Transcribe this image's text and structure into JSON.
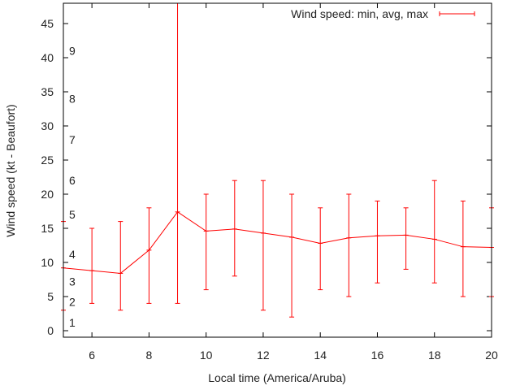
{
  "chart_data": {
    "type": "line",
    "title": "",
    "xlabel": "Local time (America/Aruba)",
    "ylabel": "Wind speed (kt - Beaufort)",
    "xlim": [
      5,
      20
    ],
    "ylim": [
      -1,
      48
    ],
    "xticks": [
      6,
      8,
      10,
      12,
      14,
      16,
      18,
      20
    ],
    "yticks": [
      0,
      5,
      10,
      15,
      20,
      25,
      30,
      35,
      40,
      45
    ],
    "legend": {
      "label": "Wind speed: min, avg, max",
      "placement": "top-right"
    },
    "beaufort_labels": [
      {
        "label": "1",
        "kt": 1.2
      },
      {
        "label": "2",
        "kt": 4.2
      },
      {
        "label": "3",
        "kt": 7.2
      },
      {
        "label": "4",
        "kt": 11.2
      },
      {
        "label": "5",
        "kt": 17
      },
      {
        "label": "6",
        "kt": 22
      },
      {
        "label": "7",
        "kt": 28
      },
      {
        "label": "8",
        "kt": 34
      },
      {
        "label": "9",
        "kt": 41
      }
    ],
    "series": [
      {
        "name": "Wind speed: min, avg, max",
        "color": "#ff0000",
        "x": [
          5,
          6,
          7,
          8,
          9,
          10,
          11,
          12,
          13,
          14,
          15,
          16,
          17,
          18,
          19,
          20
        ],
        "avg": [
          9.2,
          8.8,
          8.4,
          11.8,
          17.4,
          14.6,
          14.9,
          14.3,
          13.7,
          12.8,
          13.6,
          13.9,
          14.0,
          13.4,
          12.3,
          12.2
        ],
        "min": [
          3,
          4,
          3,
          4,
          4,
          6,
          8,
          3,
          2,
          6,
          5,
          7,
          9,
          7,
          5,
          5
        ],
        "max": [
          16,
          15,
          16,
          18,
          48,
          20,
          22,
          22,
          20,
          18,
          20,
          19,
          18,
          22,
          19,
          18
        ]
      }
    ]
  }
}
